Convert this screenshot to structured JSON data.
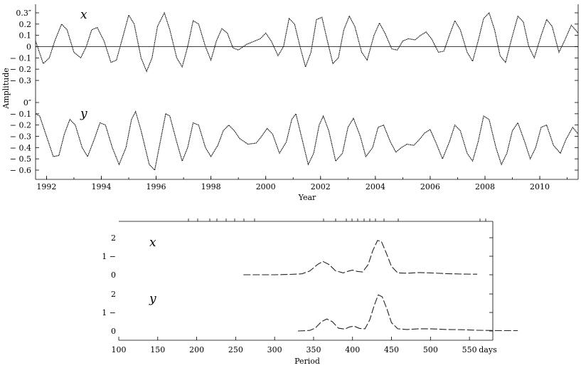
{
  "chart_data": [
    {
      "type": "line",
      "title": "",
      "xlabel": "Year",
      "ylabel": "Amplitude",
      "xlim": [
        1991.6,
        2011.4
      ],
      "x_tick_labels": [
        "1992",
        "1994",
        "1996",
        "1998",
        "2000",
        "2002",
        "2004",
        "2006",
        "2008",
        "2010"
      ],
      "x_ticks": [
        1992,
        1994,
        1996,
        1998,
        2000,
        2002,
        2004,
        2006,
        2008,
        2010
      ],
      "panels": [
        {
          "name": "x",
          "ylim": [
            -0.35,
            0.35
          ],
          "y_ticks": [
            0.3,
            0.2,
            0.1,
            0,
            -0.1,
            -0.2,
            -0.3
          ],
          "y_tick_labels": [
            "0.3″",
            "0.2",
            "0.1",
            "0",
            "− 0.1",
            "− 0.2",
            "− 0.3"
          ],
          "zero_line": true,
          "points": [
            [
              1991.6,
              0.05
            ],
            [
              1991.88,
              -0.15
            ],
            [
              1992.1,
              -0.1
            ],
            [
              1992.3,
              0.05
            ],
            [
              1992.55,
              0.2
            ],
            [
              1992.75,
              0.15
            ],
            [
              1993.0,
              -0.05
            ],
            [
              1993.25,
              -0.1
            ],
            [
              1993.45,
              0.0
            ],
            [
              1993.65,
              0.15
            ],
            [
              1993.85,
              0.17
            ],
            [
              1994.1,
              0.05
            ],
            [
              1994.35,
              -0.14
            ],
            [
              1994.55,
              -0.12
            ],
            [
              1994.8,
              0.1
            ],
            [
              1995.0,
              0.28
            ],
            [
              1995.2,
              0.2
            ],
            [
              1995.45,
              -0.1
            ],
            [
              1995.65,
              -0.22
            ],
            [
              1995.85,
              -0.1
            ],
            [
              1996.05,
              0.18
            ],
            [
              1996.3,
              0.3
            ],
            [
              1996.5,
              0.15
            ],
            [
              1996.75,
              -0.1
            ],
            [
              1996.95,
              -0.18
            ],
            [
              1997.15,
              0.0
            ],
            [
              1997.35,
              0.23
            ],
            [
              1997.55,
              0.2
            ],
            [
              1997.8,
              0.0
            ],
            [
              1998.0,
              -0.12
            ],
            [
              1998.2,
              0.05
            ],
            [
              1998.4,
              0.16
            ],
            [
              1998.6,
              0.12
            ],
            [
              1998.8,
              -0.01
            ],
            [
              1999.0,
              -0.03
            ],
            [
              1999.3,
              0.02
            ],
            [
              1999.6,
              0.05
            ],
            [
              1999.8,
              0.07
            ],
            [
              2000.0,
              0.12
            ],
            [
              2000.2,
              0.05
            ],
            [
              2000.45,
              -0.08
            ],
            [
              2000.65,
              0.0
            ],
            [
              2000.85,
              0.25
            ],
            [
              2001.05,
              0.2
            ],
            [
              2001.25,
              0.0
            ],
            [
              2001.45,
              -0.18
            ],
            [
              2001.65,
              -0.05
            ],
            [
              2001.85,
              0.24
            ],
            [
              2002.05,
              0.26
            ],
            [
              2002.25,
              0.05
            ],
            [
              2002.45,
              -0.15
            ],
            [
              2002.65,
              -0.1
            ],
            [
              2002.85,
              0.15
            ],
            [
              2003.05,
              0.27
            ],
            [
              2003.25,
              0.18
            ],
            [
              2003.5,
              -0.05
            ],
            [
              2003.7,
              -0.12
            ],
            [
              2003.95,
              0.1
            ],
            [
              2004.15,
              0.21
            ],
            [
              2004.35,
              0.12
            ],
            [
              2004.6,
              -0.02
            ],
            [
              2004.8,
              -0.03
            ],
            [
              2005.0,
              0.05
            ],
            [
              2005.2,
              0.07
            ],
            [
              2005.45,
              0.06
            ],
            [
              2005.65,
              0.1
            ],
            [
              2005.85,
              0.13
            ],
            [
              2006.05,
              0.07
            ],
            [
              2006.3,
              -0.05
            ],
            [
              2006.5,
              -0.04
            ],
            [
              2006.7,
              0.1
            ],
            [
              2006.9,
              0.23
            ],
            [
              2007.1,
              0.15
            ],
            [
              2007.35,
              -0.05
            ],
            [
              2007.55,
              -0.13
            ],
            [
              2007.75,
              0.05
            ],
            [
              2007.95,
              0.25
            ],
            [
              2008.15,
              0.3
            ],
            [
              2008.35,
              0.15
            ],
            [
              2008.55,
              -0.08
            ],
            [
              2008.75,
              -0.14
            ],
            [
              2008.95,
              0.05
            ],
            [
              2009.2,
              0.27
            ],
            [
              2009.4,
              0.22
            ],
            [
              2009.6,
              0.0
            ],
            [
              2009.8,
              -0.1
            ],
            [
              2010.05,
              0.1
            ],
            [
              2010.25,
              0.24
            ],
            [
              2010.45,
              0.18
            ],
            [
              2010.7,
              -0.05
            ],
            [
              2010.9,
              0.05
            ],
            [
              2011.15,
              0.19
            ],
            [
              2011.4,
              0.12
            ]
          ]
        },
        {
          "name": "y",
          "ylim": [
            -0.65,
            0.02
          ],
          "y_ticks": [
            0,
            -0.1,
            -0.2,
            -0.3,
            -0.4,
            -0.5,
            -0.6
          ],
          "y_tick_labels": [
            "0″",
            "− 0.1",
            "− 0.2",
            "− 0.3",
            "− 0.4",
            "− 0.5",
            "− 0.6"
          ],
          "zero_line": false,
          "points": [
            [
              1991.6,
              -0.1
            ],
            [
              1991.75,
              -0.12
            ],
            [
              1992.0,
              -0.3
            ],
            [
              1992.25,
              -0.48
            ],
            [
              1992.45,
              -0.47
            ],
            [
              1992.65,
              -0.28
            ],
            [
              1992.85,
              -0.15
            ],
            [
              1993.05,
              -0.2
            ],
            [
              1993.3,
              -0.4
            ],
            [
              1993.5,
              -0.48
            ],
            [
              1993.75,
              -0.32
            ],
            [
              1993.95,
              -0.18
            ],
            [
              1994.15,
              -0.2
            ],
            [
              1994.4,
              -0.4
            ],
            [
              1994.65,
              -0.55
            ],
            [
              1994.9,
              -0.4
            ],
            [
              1995.1,
              -0.15
            ],
            [
              1995.25,
              -0.08
            ],
            [
              1995.45,
              -0.25
            ],
            [
              1995.75,
              -0.55
            ],
            [
              1995.95,
              -0.6
            ],
            [
              1996.15,
              -0.35
            ],
            [
              1996.35,
              -0.1
            ],
            [
              1996.5,
              -0.12
            ],
            [
              1996.75,
              -0.35
            ],
            [
              1996.95,
              -0.52
            ],
            [
              1997.15,
              -0.4
            ],
            [
              1997.35,
              -0.18
            ],
            [
              1997.55,
              -0.2
            ],
            [
              1997.8,
              -0.4
            ],
            [
              1998.0,
              -0.48
            ],
            [
              1998.25,
              -0.38
            ],
            [
              1998.45,
              -0.25
            ],
            [
              1998.65,
              -0.2
            ],
            [
              1998.85,
              -0.25
            ],
            [
              1999.05,
              -0.32
            ],
            [
              1999.35,
              -0.37
            ],
            [
              1999.65,
              -0.36
            ],
            [
              1999.85,
              -0.3
            ],
            [
              2000.05,
              -0.23
            ],
            [
              2000.25,
              -0.28
            ],
            [
              2000.5,
              -0.45
            ],
            [
              2000.75,
              -0.35
            ],
            [
              2000.95,
              -0.15
            ],
            [
              2001.1,
              -0.1
            ],
            [
              2001.3,
              -0.3
            ],
            [
              2001.55,
              -0.55
            ],
            [
              2001.75,
              -0.45
            ],
            [
              2001.95,
              -0.2
            ],
            [
              2002.1,
              -0.12
            ],
            [
              2002.3,
              -0.25
            ],
            [
              2002.55,
              -0.52
            ],
            [
              2002.8,
              -0.45
            ],
            [
              2003.0,
              -0.22
            ],
            [
              2003.2,
              -0.14
            ],
            [
              2003.45,
              -0.3
            ],
            [
              2003.65,
              -0.48
            ],
            [
              2003.9,
              -0.4
            ],
            [
              2004.1,
              -0.22
            ],
            [
              2004.3,
              -0.2
            ],
            [
              2004.55,
              -0.35
            ],
            [
              2004.75,
              -0.44
            ],
            [
              2004.95,
              -0.4
            ],
            [
              2005.15,
              -0.37
            ],
            [
              2005.4,
              -0.38
            ],
            [
              2005.6,
              -0.33
            ],
            [
              2005.8,
              -0.27
            ],
            [
              2006.0,
              -0.24
            ],
            [
              2006.2,
              -0.35
            ],
            [
              2006.45,
              -0.5
            ],
            [
              2006.7,
              -0.35
            ],
            [
              2006.9,
              -0.2
            ],
            [
              2007.1,
              -0.25
            ],
            [
              2007.35,
              -0.45
            ],
            [
              2007.55,
              -0.52
            ],
            [
              2007.75,
              -0.35
            ],
            [
              2007.95,
              -0.12
            ],
            [
              2008.15,
              -0.15
            ],
            [
              2008.4,
              -0.4
            ],
            [
              2008.6,
              -0.55
            ],
            [
              2008.8,
              -0.45
            ],
            [
              2009.0,
              -0.25
            ],
            [
              2009.2,
              -0.18
            ],
            [
              2009.45,
              -0.35
            ],
            [
              2009.65,
              -0.5
            ],
            [
              2009.85,
              -0.4
            ],
            [
              2010.05,
              -0.22
            ],
            [
              2010.25,
              -0.2
            ],
            [
              2010.5,
              -0.38
            ],
            [
              2010.75,
              -0.45
            ],
            [
              2010.95,
              -0.33
            ],
            [
              2011.2,
              -0.22
            ],
            [
              2011.4,
              -0.28
            ]
          ]
        }
      ]
    },
    {
      "type": "line",
      "title": "",
      "xlabel": "Period",
      "x_unit": "days",
      "xlim": [
        100,
        580
      ],
      "x_ticks": [
        100,
        150,
        200,
        250,
        300,
        350,
        400,
        450,
        500,
        550
      ],
      "x_tick_labels": [
        "100",
        "150",
        "200",
        "250",
        "300",
        "350",
        "400",
        "450",
        "500",
        "550"
      ],
      "x_unit_label": "days",
      "panels": [
        {
          "name": "x",
          "ylim": [
            0,
            2
          ],
          "y_ticks": [
            2,
            1,
            0
          ],
          "y_tick_labels": [
            "2",
            "1 −",
            "0"
          ],
          "points": [
            [
              260,
              0.0
            ],
            [
              280,
              0.0
            ],
            [
              300,
              0.0
            ],
            [
              320,
              0.02
            ],
            [
              335,
              0.05
            ],
            [
              345,
              0.2
            ],
            [
              355,
              0.55
            ],
            [
              362,
              0.72
            ],
            [
              370,
              0.55
            ],
            [
              378,
              0.22
            ],
            [
              388,
              0.1
            ],
            [
              395,
              0.2
            ],
            [
              400,
              0.25
            ],
            [
              406,
              0.18
            ],
            [
              413,
              0.15
            ],
            [
              420,
              0.55
            ],
            [
              426,
              1.3
            ],
            [
              432,
              1.85
            ],
            [
              437,
              1.8
            ],
            [
              443,
              1.2
            ],
            [
              450,
              0.45
            ],
            [
              458,
              0.1
            ],
            [
              470,
              0.08
            ],
            [
              485,
              0.12
            ],
            [
              500,
              0.1
            ],
            [
              520,
              0.06
            ],
            [
              540,
              0.04
            ],
            [
              560,
              0.03
            ]
          ]
        },
        {
          "name": "y",
          "ylim": [
            0,
            2
          ],
          "y_ticks": [
            2,
            1,
            0
          ],
          "y_tick_labels": [
            "2",
            "1 −",
            "0"
          ],
          "points": [
            [
              330,
              0.0
            ],
            [
              345,
              0.03
            ],
            [
              352,
              0.15
            ],
            [
              360,
              0.5
            ],
            [
              367,
              0.65
            ],
            [
              374,
              0.5
            ],
            [
              382,
              0.15
            ],
            [
              390,
              0.1
            ],
            [
              396,
              0.22
            ],
            [
              402,
              0.26
            ],
            [
              409,
              0.14
            ],
            [
              416,
              0.12
            ],
            [
              422,
              0.6
            ],
            [
              428,
              1.4
            ],
            [
              433,
              1.95
            ],
            [
              438,
              1.85
            ],
            [
              444,
              1.2
            ],
            [
              450,
              0.45
            ],
            [
              458,
              0.12
            ],
            [
              470,
              0.08
            ],
            [
              485,
              0.12
            ],
            [
              500,
              0.12
            ],
            [
              520,
              0.08
            ],
            [
              540,
              0.07
            ],
            [
              560,
              0.04
            ],
            [
              590,
              0.02
            ],
            [
              612,
              0.02
            ]
          ]
        }
      ]
    }
  ]
}
